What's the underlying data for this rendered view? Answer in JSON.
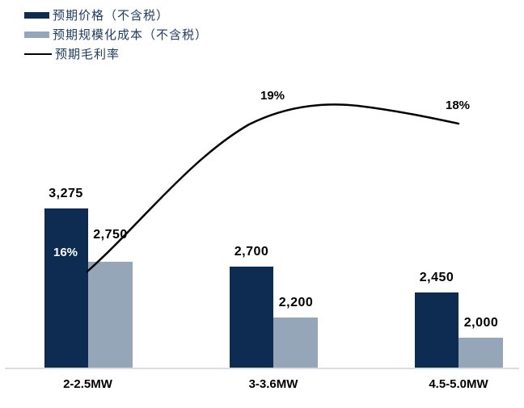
{
  "chart_data": {
    "type": "bar",
    "subtype": "grouped-bar-with-line-overlay",
    "title": "",
    "xlabel": "",
    "ylabel": "",
    "grid": false,
    "value_axis_visible": false,
    "legend_position": "top-left",
    "categories": [
      "2-2.5MW",
      "3-3.6MW",
      "4.5-5.0MW"
    ],
    "series": [
      {
        "name": "预期价格（不含税）",
        "type": "bar",
        "color": "#0e2b52",
        "values": [
          3275,
          2700,
          2450
        ],
        "value_labels": [
          "3,275",
          "2,700",
          "2,450"
        ]
      },
      {
        "name": "预期规模化成本（不含税）",
        "type": "bar",
        "color": "#95a6b8",
        "values": [
          2750,
          2200,
          2000
        ],
        "value_labels": [
          "2,750",
          "2,200",
          "2,000"
        ]
      },
      {
        "name": "预期毛利率",
        "type": "line",
        "color": "#000000",
        "smoothed": true,
        "values": [
          0.16,
          0.19,
          0.18
        ],
        "value_labels": [
          "16%",
          "19%",
          "18%"
        ]
      }
    ],
    "hidden_value_axis_baseline_approx": 1700
  },
  "legend": {
    "items": [
      {
        "label": "预期价格（不含税）",
        "swatch": "bar",
        "color": "#0e2b52"
      },
      {
        "label": "预期规模化成本（不含税）",
        "swatch": "bar",
        "color": "#95a6b8"
      },
      {
        "label": "预期毛利率",
        "swatch": "line",
        "color": "#000000"
      }
    ]
  },
  "colors": {
    "price_bar": "#0e2b52",
    "cost_bar": "#95a6b8",
    "margin_line": "#000000",
    "axis_line": "#dcdcdc",
    "legend_text": "#1f3a5f",
    "background": "#ffffff"
  }
}
